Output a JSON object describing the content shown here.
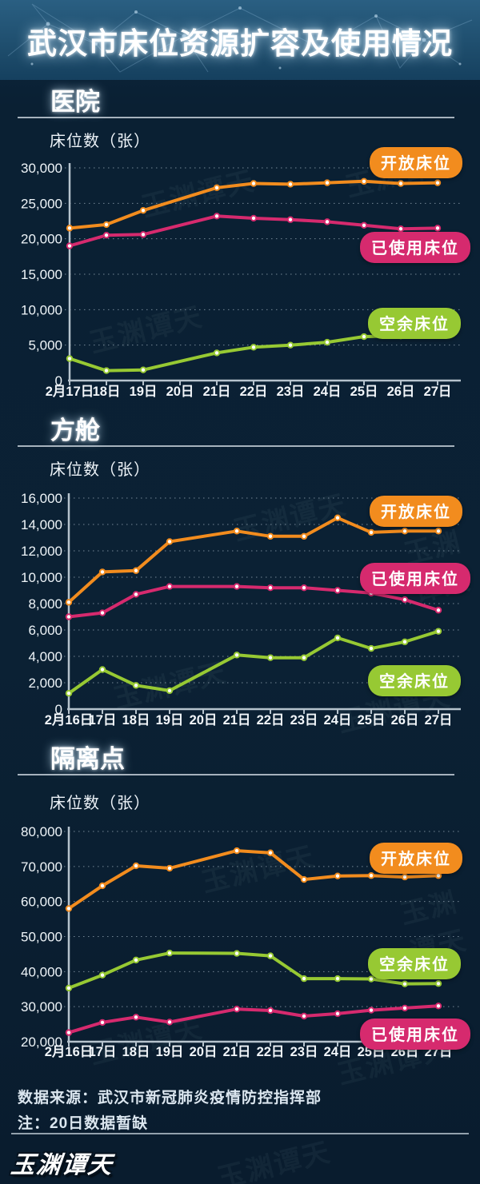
{
  "title": "武汉市床位资源扩容及使用情况",
  "watermark": "玉渊谭天",
  "footer": {
    "source": "数据来源：武汉市新冠肺炎疫情防控指挥部",
    "note": "注：20日数据暂缺",
    "logo": "玉渊谭天"
  },
  "colors": {
    "open": "#f28c1e",
    "used": "#d62a6e",
    "vacant": "#97c933",
    "axis": "#b6c3cd",
    "background": "#0b2134",
    "banner": "#1c4a69"
  },
  "chart_data": [
    {
      "id": "hospital",
      "heading": "医院",
      "axis_title": "床位数（张）",
      "type": "line",
      "grid": true,
      "legend_position": "right-inside",
      "note": "20日数据暂缺（缺口直接连线）",
      "categories": [
        "2月17日",
        "18日",
        "19日",
        "20日",
        "21日",
        "22日",
        "23日",
        "24日",
        "25日",
        "26日",
        "27日"
      ],
      "ylim": [
        0,
        30000
      ],
      "ytick_step": 5000,
      "yticks": [
        "30,000",
        "25,000",
        "20,000",
        "15,000",
        "10,000",
        "5,000",
        "0"
      ],
      "series": [
        {
          "key": "open",
          "name": "开放床位",
          "color": "#f28c1e",
          "values": [
            21500,
            22000,
            24000,
            null,
            27200,
            27800,
            27700,
            27900,
            28100,
            27800,
            27900
          ]
        },
        {
          "key": "used",
          "name": "已使用床位",
          "color": "#d62a6e",
          "values": [
            19000,
            20500,
            20600,
            null,
            23200,
            22900,
            22700,
            22400,
            21900,
            21400,
            21500
          ]
        },
        {
          "key": "vacant",
          "name": "空余床位",
          "color": "#97c933",
          "values": [
            3100,
            1400,
            1500,
            null,
            3900,
            4700,
            5000,
            5400,
            6200,
            6300,
            6400
          ]
        }
      ]
    },
    {
      "id": "fangcang",
      "heading": "方舱",
      "axis_title": "床位数（张）",
      "type": "line",
      "grid": true,
      "legend_position": "right-inside",
      "note": "20日数据暂缺（缺口直接连线）",
      "categories": [
        "2月16日",
        "17日",
        "18日",
        "19日",
        "20日",
        "21日",
        "22日",
        "23日",
        "24日",
        "25日",
        "26日",
        "27日"
      ],
      "ylim": [
        0,
        16000
      ],
      "ytick_step": 2000,
      "yticks": [
        "16,000",
        "14,000",
        "12,000",
        "10,000",
        "8,000",
        "6,000",
        "4,000",
        "2,000",
        "0"
      ],
      "series": [
        {
          "key": "open",
          "name": "开放床位",
          "color": "#f28c1e",
          "values": [
            8100,
            10400,
            10500,
            12700,
            null,
            13500,
            13100,
            13100,
            14500,
            13400,
            13500,
            13500
          ]
        },
        {
          "key": "used",
          "name": "已使用床位",
          "color": "#d62a6e",
          "values": [
            7000,
            7300,
            8700,
            9300,
            null,
            9300,
            9200,
            9200,
            9000,
            8800,
            8300,
            7500
          ]
        },
        {
          "key": "vacant",
          "name": "空余床位",
          "color": "#97c933",
          "values": [
            1200,
            3000,
            1800,
            1400,
            null,
            4100,
            3900,
            3900,
            5400,
            4600,
            5100,
            5900
          ]
        }
      ]
    },
    {
      "id": "isolation",
      "heading": "隔离点",
      "axis_title": "床位数（张）",
      "type": "line",
      "grid": true,
      "legend_position": "right-inside",
      "note": "20日数据暂缺（缺口直接连线）",
      "categories": [
        "2月16日",
        "17日",
        "18日",
        "19日",
        "20日",
        "21日",
        "22日",
        "23日",
        "24日",
        "25日",
        "26日",
        "27日"
      ],
      "ylim": [
        20000,
        80000
      ],
      "ytick_step": 10000,
      "yticks": [
        "80,000",
        "70,000",
        "60,000",
        "50,000",
        "40,000",
        "30,000",
        "20,000"
      ],
      "series": [
        {
          "key": "open",
          "name": "开放床位",
          "color": "#f28c1e",
          "values": [
            58000,
            64500,
            70200,
            69500,
            null,
            74500,
            73900,
            66300,
            67300,
            67400,
            67000,
            67400
          ]
        },
        {
          "key": "used",
          "name": "已使用床位",
          "color": "#d62a6e",
          "values": [
            22600,
            25500,
            27000,
            25600,
            null,
            29300,
            28900,
            27300,
            28000,
            29000,
            29600,
            30200
          ]
        },
        {
          "key": "vacant",
          "name": "空余床位",
          "color": "#97c933",
          "values": [
            35300,
            39000,
            43300,
            45300,
            null,
            45200,
            44500,
            38000,
            38000,
            37900,
            36500,
            36600
          ]
        }
      ]
    }
  ]
}
